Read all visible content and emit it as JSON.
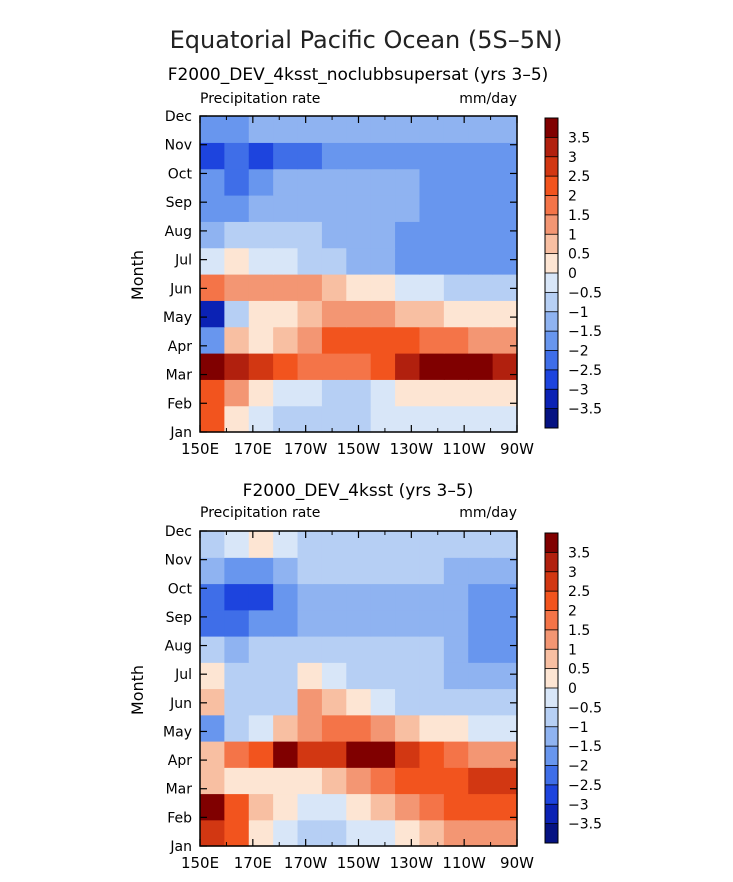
{
  "figure_title": "Equatorial Pacific Ocean (5S–5N)",
  "panels": [
    {
      "subtitle": "F2000_DEV_4ksst_noclubbsupersat (yrs 3–5)",
      "left_label": "Precipitation rate",
      "right_label": "mm/day",
      "ylabel": "Month"
    },
    {
      "subtitle": "F2000_DEV_4ksst (yrs 3–5)",
      "left_label": "Precipitation rate",
      "right_label": "mm/day",
      "ylabel": "Month"
    }
  ],
  "x_ticks": [
    "150E",
    "170E",
    "170W",
    "150W",
    "130W",
    "110W",
    "90W"
  ],
  "y_ticks": [
    "Jan",
    "Feb",
    "Mar",
    "Apr",
    "May",
    "Jun",
    "Jul",
    "Aug",
    "Sep",
    "Oct",
    "Nov",
    "Dec"
  ],
  "colorbar_labels": [
    "3.5",
    "3",
    "2.5",
    "2",
    "1.5",
    "1",
    "0.5",
    "0",
    "−0.5",
    "−1",
    "−1.5",
    "−2",
    "−2.5",
    "−3",
    "−3.5"
  ],
  "colorbar_colors": [
    "#800000",
    "#b1200e",
    "#d23712",
    "#f2541e",
    "#f47448",
    "#f39673",
    "#f8bfa2",
    "#fde5d3",
    "#d8e6f8",
    "#b6cff4",
    "#8fb3f1",
    "#6896ee",
    "#3f6ee8",
    "#1d44de",
    "#0b22b4",
    "#051282"
  ],
  "chart_data": [
    {
      "type": "heatmap",
      "title": "F2000_DEV_4ksst_noclubbsupersat (yrs 3–5)",
      "xlabel": "",
      "ylabel": "Month",
      "units": "mm/day",
      "x": [
        "150E",
        "160E",
        "170E",
        "180",
        "170W",
        "160W",
        "150W",
        "140W",
        "130W",
        "120W",
        "110W",
        "100W",
        "90W"
      ],
      "y": [
        "Jan",
        "Feb",
        "Mar",
        "Apr",
        "May",
        "Jun",
        "Jul",
        "Aug",
        "Sep",
        "Oct",
        "Nov",
        "Dec"
      ],
      "z": [
        [
          2.5,
          0.2,
          -0.2,
          -0.5,
          -0.7,
          -0.7,
          -0.6,
          -0.4,
          -0.2,
          -0.2,
          0.0,
          -0.2,
          -0.2
        ],
        [
          2.5,
          1.5,
          0.5,
          0.0,
          -0.3,
          -0.5,
          -0.5,
          -0.2,
          0.2,
          0.5,
          0.5,
          0.5,
          0.5
        ],
        [
          3.6,
          3.3,
          3.0,
          2.5,
          2.0,
          1.8,
          2.0,
          2.5,
          3.2,
          3.6,
          3.6,
          3.5,
          3.2
        ],
        [
          -1.5,
          1.0,
          0.5,
          1.0,
          1.5,
          2.5,
          2.5,
          2.5,
          2.2,
          2.0,
          2.0,
          1.5,
          1.5
        ],
        [
          -3.0,
          -0.5,
          0.2,
          0.5,
          1.0,
          1.5,
          1.5,
          1.5,
          1.0,
          0.8,
          0.5,
          0.5,
          0.5
        ],
        [
          2.0,
          1.5,
          1.5,
          1.5,
          1.5,
          1.0,
          0.5,
          0.3,
          0.0,
          -0.3,
          -0.5,
          -0.5,
          -0.5
        ],
        [
          0.0,
          0.3,
          -0.3,
          -0.3,
          -0.5,
          -0.8,
          -1.0,
          -1.2,
          -1.5,
          -1.5,
          -1.5,
          -1.5,
          -1.5
        ],
        [
          -1.0,
          -0.5,
          -0.5,
          -0.5,
          -0.8,
          -1.0,
          -1.0,
          -1.2,
          -1.5,
          -1.5,
          -1.5,
          -1.5,
          -1.5
        ],
        [
          -1.5,
          -1.5,
          -1.0,
          -1.0,
          -1.0,
          -1.0,
          -1.0,
          -1.0,
          -1.2,
          -1.5,
          -1.5,
          -1.5,
          -1.5
        ],
        [
          -1.5,
          -2.0,
          -1.5,
          -1.0,
          -1.0,
          -1.0,
          -1.0,
          -1.0,
          -1.2,
          -1.5,
          -1.5,
          -1.5,
          -1.5
        ],
        [
          -2.5,
          -2.0,
          -2.5,
          -2.0,
          -2.0,
          -1.5,
          -1.5,
          -1.5,
          -1.5,
          -1.5,
          -1.5,
          -1.5,
          -1.5
        ],
        [
          -1.5,
          -1.5,
          -1.0,
          -1.0,
          -1.0,
          -1.0,
          -1.0,
          -1.0,
          -1.0,
          -1.0,
          -1.0,
          -1.0,
          -1.0
        ]
      ]
    },
    {
      "type": "heatmap",
      "title": "F2000_DEV_4ksst (yrs 3–5)",
      "xlabel": "",
      "ylabel": "Month",
      "units": "mm/day",
      "x": [
        "150E",
        "160E",
        "170E",
        "180",
        "170W",
        "160W",
        "150W",
        "140W",
        "130W",
        "120W",
        "110W",
        "100W",
        "90W"
      ],
      "y": [
        "Jan",
        "Feb",
        "Mar",
        "Apr",
        "May",
        "Jun",
        "Jul",
        "Aug",
        "Sep",
        "Oct",
        "Nov",
        "Dec"
      ],
      "z": [
        [
          3.0,
          2.5,
          0.5,
          0.0,
          -0.5,
          -0.5,
          -0.3,
          0.0,
          0.5,
          1.0,
          1.5,
          1.5,
          1.5
        ],
        [
          3.5,
          2.5,
          1.0,
          0.5,
          0.0,
          0.0,
          0.5,
          1.0,
          1.5,
          2.0,
          2.5,
          2.5,
          2.5
        ],
        [
          1.0,
          0.5,
          0.5,
          0.5,
          0.5,
          1.0,
          1.5,
          2.0,
          2.5,
          2.5,
          2.5,
          3.0,
          3.0
        ],
        [
          1.0,
          2.0,
          2.5,
          3.5,
          3.0,
          3.0,
          3.5,
          3.5,
          3.0,
          2.5,
          2.0,
          1.5,
          1.5
        ],
        [
          -1.5,
          -0.5,
          0.0,
          1.0,
          1.5,
          2.0,
          2.0,
          1.5,
          1.0,
          0.5,
          0.5,
          0.0,
          0.0
        ],
        [
          1.0,
          -0.5,
          -0.5,
          -0.5,
          1.5,
          1.0,
          0.5,
          0.0,
          -0.5,
          -0.5,
          -0.5,
          -0.5,
          -0.5
        ],
        [
          0.5,
          -0.5,
          -0.5,
          -0.5,
          0.5,
          0.0,
          -0.5,
          -0.5,
          -0.5,
          -0.5,
          -1.0,
          -1.0,
          -1.0
        ],
        [
          -0.5,
          -1.0,
          -0.5,
          -0.5,
          -0.5,
          -0.5,
          -0.5,
          -0.5,
          -0.5,
          -0.5,
          -1.0,
          -1.5,
          -1.5
        ],
        [
          -2.0,
          -2.0,
          -1.5,
          -1.5,
          -1.0,
          -1.0,
          -1.0,
          -1.0,
          -1.0,
          -1.0,
          -1.0,
          -1.5,
          -1.5
        ],
        [
          -2.0,
          -2.5,
          -2.5,
          -1.5,
          -1.0,
          -1.0,
          -1.0,
          -1.0,
          -1.0,
          -1.0,
          -1.0,
          -1.5,
          -1.5
        ],
        [
          -1.0,
          -1.5,
          -1.5,
          -1.0,
          -0.5,
          -0.5,
          -0.5,
          -0.5,
          -0.5,
          -0.5,
          -1.0,
          -1.0,
          -1.0
        ],
        [
          -0.5,
          0.0,
          0.5,
          -0.3,
          -0.5,
          -0.5,
          -0.5,
          -0.5,
          -0.5,
          -0.5,
          -0.5,
          -0.5,
          -0.5
        ]
      ]
    }
  ]
}
